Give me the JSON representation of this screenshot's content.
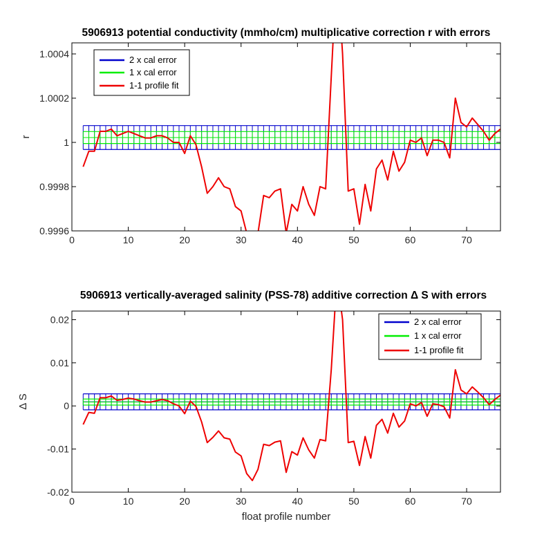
{
  "chart_data": [
    {
      "type": "line",
      "title": "5906913 potential conductivity (mmho/cm) multiplicative correction r with errors",
      "xlabel": "",
      "ylabel": "r",
      "xlim": [
        0,
        76
      ],
      "ylim": [
        0.9996,
        1.00045
      ],
      "xticks": [
        "0",
        "10",
        "20",
        "30",
        "40",
        "50",
        "60",
        "70"
      ],
      "yticks": [
        "0.9996",
        "0.9998",
        "1",
        "1.0002",
        "1.0004"
      ],
      "grid": false,
      "legend_placement": "top-left",
      "colors": {
        "two_cal": "#0000cc",
        "one_cal": "#00ee00",
        "fit": "#ee0000"
      },
      "series": [
        {
          "name": "2 x cal error",
          "x": [
            2,
            76
          ],
          "upper": [
            1.000076,
            1.000076
          ],
          "lower": [
            0.999968,
            0.999968
          ]
        },
        {
          "name": "1 x cal error",
          "x": [
            2,
            76
          ],
          "upper": [
            1.000049,
            1.000049
          ],
          "lower": [
            0.999995,
            0.999995
          ]
        },
        {
          "name": "1-1 profile fit",
          "x": [
            2,
            3,
            4,
            5,
            6,
            7,
            8,
            9,
            10,
            11,
            12,
            13,
            14,
            15,
            16,
            17,
            18,
            19,
            20,
            21,
            22,
            23,
            24,
            25,
            26,
            27,
            28,
            29,
            30,
            31,
            32,
            33,
            34,
            35,
            36,
            37,
            38,
            39,
            40,
            41,
            42,
            43,
            44,
            45,
            46,
            47,
            48,
            49,
            50,
            51,
            52,
            53,
            54,
            55,
            56,
            57,
            58,
            59,
            60,
            61,
            62,
            63,
            64,
            65,
            66,
            67,
            68,
            69,
            70,
            71,
            72,
            73,
            74,
            75,
            76
          ],
          "values": [
            0.99989,
            0.99996,
            0.99996,
            1.00005,
            1.00005,
            1.00006,
            1.00003,
            1.00004,
            1.00005,
            1.00004,
            1.00003,
            1.00002,
            1.00002,
            1.00003,
            1.00003,
            1.00002,
            1.0,
            1.0,
            0.99995,
            1.00003,
            0.99999,
            0.99989,
            0.99977,
            0.9998,
            0.99984,
            0.9998,
            0.99979,
            0.99971,
            0.99969,
            0.99959,
            0.99953,
            0.99959,
            0.99976,
            0.99975,
            0.99978,
            0.99979,
            0.99959,
            0.99972,
            0.99969,
            0.9998,
            0.99972,
            0.99967,
            0.9998,
            0.99979,
            1.0003,
            1.0008,
            1.0004,
            0.99978,
            0.99979,
            0.99963,
            0.99981,
            0.99969,
            0.99988,
            0.99992,
            0.99983,
            0.99996,
            0.99987,
            0.99991,
            1.00001,
            1.0,
            1.00002,
            0.99994,
            1.00001,
            1.00001,
            1.0,
            0.99993,
            1.0002,
            1.00009,
            1.00007,
            1.00011,
            1.00008,
            1.00005,
            1.00001,
            1.00004,
            1.00006
          ]
        }
      ]
    },
    {
      "type": "line",
      "title": "5906913 vertically-averaged salinity (PSS-78) additive correction Δ S with errors",
      "xlabel": "float profile number",
      "ylabel": "Δ S",
      "xlim": [
        0,
        76
      ],
      "ylim": [
        -0.02,
        0.022
      ],
      "xticks": [
        "0",
        "10",
        "20",
        "30",
        "40",
        "50",
        "60",
        "70"
      ],
      "yticks": [
        "-0.02",
        "-0.01",
        "0",
        "0.01",
        "0.02"
      ],
      "grid": false,
      "legend_placement": "top-right",
      "colors": {
        "two_cal": "#0000cc",
        "one_cal": "#00ee00",
        "fit": "#ee0000"
      },
      "series": [
        {
          "name": "2 x cal error",
          "x": [
            2,
            76
          ],
          "upper": [
            0.0028,
            0.0028
          ],
          "lower": [
            -0.0009,
            -0.0009
          ]
        },
        {
          "name": "1 x cal error",
          "x": [
            2,
            76
          ],
          "upper": [
            0.0016,
            0.0016
          ],
          "lower": [
            0.0002,
            0.0002
          ]
        },
        {
          "name": "1-1 profile fit",
          "x": [
            2,
            3,
            4,
            5,
            6,
            7,
            8,
            9,
            10,
            11,
            12,
            13,
            14,
            15,
            16,
            17,
            18,
            19,
            20,
            21,
            22,
            23,
            24,
            25,
            26,
            27,
            28,
            29,
            30,
            31,
            32,
            33,
            34,
            35,
            36,
            37,
            38,
            39,
            40,
            41,
            42,
            43,
            44,
            45,
            46,
            47,
            48,
            49,
            50,
            51,
            52,
            53,
            54,
            55,
            56,
            57,
            58,
            59,
            60,
            61,
            62,
            63,
            64,
            65,
            66,
            67,
            68,
            69,
            70,
            71,
            72,
            73,
            74,
            75,
            76
          ],
          "values": [
            -0.0043,
            -0.0015,
            -0.0017,
            0.0019,
            0.0019,
            0.0023,
            0.0013,
            0.0015,
            0.0018,
            0.0016,
            0.0012,
            0.0009,
            0.0009,
            0.0012,
            0.0015,
            0.0012,
            0.0005,
            0.0,
            -0.0018,
            0.0011,
            -0.0001,
            -0.0037,
            -0.0085,
            -0.0073,
            -0.0058,
            -0.0074,
            -0.0077,
            -0.0107,
            -0.0116,
            -0.0157,
            -0.0173,
            -0.0147,
            -0.0089,
            -0.0092,
            -0.0084,
            -0.0081,
            -0.0154,
            -0.0106,
            -0.0114,
            -0.0074,
            -0.0102,
            -0.0121,
            -0.0078,
            -0.0081,
            0.0085,
            0.03,
            0.02,
            -0.0085,
            -0.0082,
            -0.0138,
            -0.0071,
            -0.0121,
            -0.0045,
            -0.0031,
            -0.0063,
            -0.0017,
            -0.0049,
            -0.0035,
            0.0005,
            0.0,
            0.0008,
            -0.0024,
            0.0005,
            0.0003,
            -0.0002,
            -0.0028,
            0.0084,
            0.0037,
            0.0028,
            0.0044,
            0.0032,
            0.0019,
            0.0003,
            0.0015,
            0.0025
          ]
        }
      ]
    }
  ]
}
